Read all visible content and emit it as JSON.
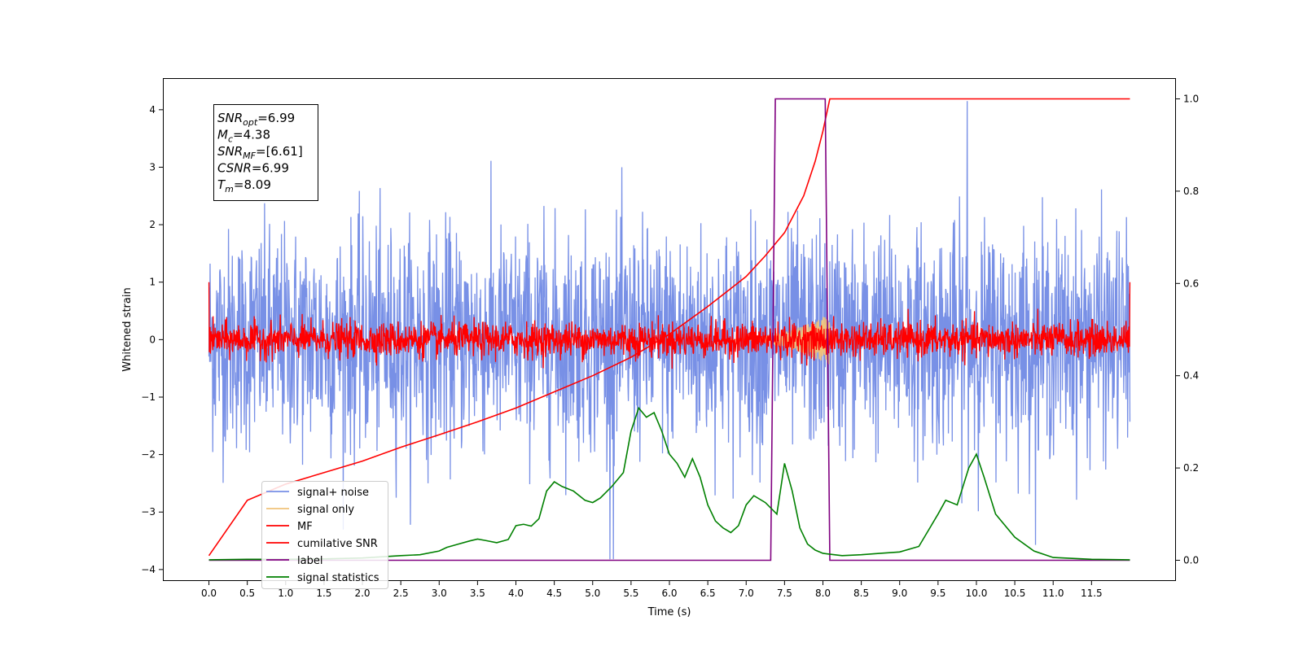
{
  "chart_data": {
    "type": "line",
    "xlabel": "Time (s)",
    "ylabel": "Whitened strain",
    "xlim": [
      -0.6,
      12.6
    ],
    "ylim": [
      -4.2,
      4.55
    ],
    "y2lim": [
      -0.045,
      1.045
    ],
    "xticks": [
      0.0,
      0.5,
      1.0,
      1.5,
      2.0,
      2.5,
      3.0,
      3.5,
      4.0,
      4.5,
      5.0,
      5.5,
      6.0,
      6.5,
      7.0,
      7.5,
      8.0,
      8.5,
      9.0,
      9.5,
      10.0,
      10.5,
      11.0,
      11.5
    ],
    "xtick_labels": [
      "0.0",
      "0.5",
      "1.0",
      "1.5",
      "2.0",
      "2.5",
      "3.0",
      "3.5",
      "4.0",
      "4.5",
      "5.0",
      "5.5",
      "6.0",
      "6.5",
      "7.0",
      "7.5",
      "8.0",
      "8.5",
      "9.0",
      "9.5",
      "10.0",
      "10.5",
      "11.0",
      "11.5"
    ],
    "yticks": [
      -4,
      -3,
      -2,
      -1,
      0,
      1,
      2,
      3,
      4
    ],
    "ytick_labels": [
      "−4",
      "−3",
      "−2",
      "−1",
      "0",
      "1",
      "2",
      "3",
      "4"
    ],
    "y2ticks": [
      0.0,
      0.2,
      0.4,
      0.6,
      0.8,
      1.0
    ],
    "y2tick_labels": [
      "0.0",
      "0.2",
      "0.4",
      "0.6",
      "0.8",
      "1.0"
    ],
    "legend_position": "lower-left",
    "grid": false,
    "annotation": {
      "lines": [
        {
          "main": "SNR",
          "sub": "opt",
          "rest": "=6.99"
        },
        {
          "main": "M",
          "sub": "c",
          "rest": "=4.38"
        },
        {
          "main": "SNR",
          "sub": "MF",
          "rest": "=[6.61]"
        },
        {
          "main": "CSNR",
          "sub": "",
          "rest": "=6.99"
        },
        {
          "main": "T",
          "sub": "m",
          "rest": "=8.09"
        }
      ]
    },
    "series": [
      {
        "name": "signal+ noise",
        "color": "#7890e6",
        "axis": "left",
        "kind": "noise",
        "mean": 0.0,
        "std": 0.95,
        "x_range": [
          0.0,
          12.0
        ],
        "spike_x": [
          5.27,
          9.88
        ],
        "spike_y": [
          -3.82,
          4.15
        ]
      },
      {
        "name": "signal only",
        "color": "#f0c37a",
        "axis": "left",
        "kind": "chirp",
        "x_range": [
          6.8,
          8.09
        ],
        "peak_amplitude": 0.45
      },
      {
        "name": "MF",
        "color": "#ff0000",
        "axis": "left",
        "kind": "noise",
        "mean": 0.0,
        "std": 0.15,
        "x_range": [
          0.0,
          12.0
        ],
        "edge_values": [
          1.0,
          1.0
        ]
      },
      {
        "name": "cumilative SNR",
        "color": "#ff0000",
        "axis": "right",
        "x": [
          0.0,
          0.5,
          1.0,
          1.5,
          2.0,
          2.5,
          3.0,
          3.5,
          4.0,
          4.5,
          5.0,
          5.5,
          6.0,
          6.5,
          7.0,
          7.25,
          7.5,
          7.75,
          7.9,
          8.0,
          8.09,
          9.0,
          10.0,
          11.0,
          12.0
        ],
        "y": [
          0.01,
          0.13,
          0.165,
          0.19,
          0.215,
          0.245,
          0.272,
          0.3,
          0.33,
          0.365,
          0.4,
          0.44,
          0.49,
          0.55,
          0.615,
          0.66,
          0.71,
          0.79,
          0.865,
          0.93,
          1.0,
          1.0,
          1.0,
          1.0,
          1.0
        ]
      },
      {
        "name": "label",
        "color": "#800080",
        "axis": "right",
        "x": [
          0.0,
          7.32,
          7.38,
          8.03,
          8.09,
          12.0
        ],
        "y": [
          0.0,
          0.0,
          1.0,
          1.0,
          0.0,
          0.0
        ]
      },
      {
        "name": "signal statistics",
        "color": "#008000",
        "axis": "right",
        "x": [
          0.0,
          0.5,
          1.0,
          1.5,
          2.0,
          2.5,
          2.75,
          3.0,
          3.1,
          3.25,
          3.4,
          3.5,
          3.6,
          3.75,
          3.9,
          4.0,
          4.1,
          4.2,
          4.3,
          4.4,
          4.5,
          4.6,
          4.75,
          4.9,
          5.0,
          5.1,
          5.25,
          5.4,
          5.5,
          5.6,
          5.7,
          5.8,
          5.9,
          6.0,
          6.1,
          6.2,
          6.3,
          6.4,
          6.5,
          6.6,
          6.7,
          6.8,
          6.9,
          7.0,
          7.1,
          7.25,
          7.4,
          7.5,
          7.6,
          7.7,
          7.8,
          7.9,
          8.0,
          8.25,
          8.5,
          8.75,
          9.0,
          9.25,
          9.5,
          9.6,
          9.75,
          9.9,
          10.0,
          10.1,
          10.25,
          10.5,
          10.75,
          11.0,
          11.5,
          12.0
        ],
        "y": [
          0.001,
          0.002,
          0.002,
          0.003,
          0.005,
          0.01,
          0.012,
          0.02,
          0.028,
          0.035,
          0.042,
          0.046,
          0.043,
          0.038,
          0.045,
          0.075,
          0.078,
          0.074,
          0.09,
          0.15,
          0.17,
          0.16,
          0.15,
          0.13,
          0.125,
          0.135,
          0.16,
          0.19,
          0.28,
          0.33,
          0.31,
          0.32,
          0.28,
          0.23,
          0.21,
          0.18,
          0.22,
          0.18,
          0.12,
          0.085,
          0.07,
          0.06,
          0.075,
          0.12,
          0.14,
          0.125,
          0.1,
          0.21,
          0.15,
          0.07,
          0.035,
          0.022,
          0.015,
          0.01,
          0.012,
          0.015,
          0.018,
          0.03,
          0.1,
          0.13,
          0.12,
          0.2,
          0.23,
          0.18,
          0.1,
          0.05,
          0.02,
          0.006,
          0.002,
          0.001
        ]
      }
    ]
  }
}
